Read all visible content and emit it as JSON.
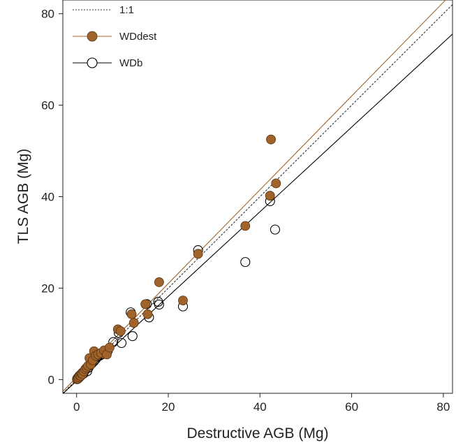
{
  "chart_data": {
    "type": "scatter",
    "title": "",
    "xlabel": "Destructive AGB (Mg)",
    "ylabel": "TLS AGB (Mg)",
    "xlim": [
      -3,
      82
    ],
    "ylim": [
      -3,
      83
    ],
    "x_ticks": [
      "0",
      "20",
      "40",
      "60",
      "80"
    ],
    "y_ticks": [
      "0",
      "20",
      "40",
      "60",
      "80"
    ],
    "grid": false,
    "legend_position": "top-left",
    "colors": {
      "wddest": "#a0642a",
      "wdb": "#000000",
      "one_to_one": "#333333"
    },
    "lines": [
      {
        "name": "1:1",
        "style": "dotted",
        "color": "#333333",
        "intercept": 0,
        "slope": 1
      },
      {
        "name": "WDdest",
        "style": "solid",
        "color": "#a0642a",
        "intercept": 0.5,
        "slope": 1.025
      },
      {
        "name": "WDb",
        "style": "solid",
        "color": "#000000",
        "intercept": -0.3,
        "slope": 0.925
      }
    ],
    "series": [
      {
        "name": "WDb",
        "marker": "open-circle",
        "points": [
          [
            0.1,
            0.1
          ],
          [
            0.2,
            0.3
          ],
          [
            0.3,
            0.2
          ],
          [
            0.4,
            0.5
          ],
          [
            0.5,
            0.4
          ],
          [
            0.6,
            0.8
          ],
          [
            0.8,
            0.7
          ],
          [
            1.0,
            1.2
          ],
          [
            1.1,
            1.0
          ],
          [
            1.3,
            1.5
          ],
          [
            1.5,
            1.3
          ],
          [
            1.8,
            2.0
          ],
          [
            2.0,
            2.3
          ],
          [
            2.3,
            1.8
          ],
          [
            2.6,
            2.6
          ],
          [
            3.0,
            3.2
          ],
          [
            3.3,
            3.5
          ],
          [
            3.8,
            4.0
          ],
          [
            4.2,
            4.5
          ],
          [
            4.6,
            5.0
          ],
          [
            5.0,
            5.2
          ],
          [
            5.5,
            5.5
          ],
          [
            6.0,
            6.2
          ],
          [
            6.8,
            6.3
          ],
          [
            8.0,
            8.2
          ],
          [
            9.2,
            10.2
          ],
          [
            9.8,
            8.0
          ],
          [
            11.8,
            14.7
          ],
          [
            12.2,
            9.5
          ],
          [
            15.3,
            16.5
          ],
          [
            15.8,
            13.6
          ],
          [
            17.8,
            17.0
          ],
          [
            18.0,
            16.4
          ],
          [
            23.2,
            16.0
          ],
          [
            26.5,
            28.3
          ],
          [
            36.8,
            25.7
          ],
          [
            42.2,
            39.0
          ],
          [
            43.3,
            32.8
          ]
        ]
      },
      {
        "name": "WDdest",
        "marker": "filled-circle",
        "points": [
          [
            0.1,
            0.1
          ],
          [
            0.2,
            0.3
          ],
          [
            0.3,
            0.2
          ],
          [
            0.5,
            0.5
          ],
          [
            0.7,
            0.9
          ],
          [
            0.9,
            0.8
          ],
          [
            1.1,
            1.3
          ],
          [
            1.3,
            1.2
          ],
          [
            1.6,
            1.8
          ],
          [
            1.9,
            2.3
          ],
          [
            2.2,
            2.6
          ],
          [
            2.5,
            3.0
          ],
          [
            2.8,
            4.7
          ],
          [
            3.1,
            3.3
          ],
          [
            3.5,
            4.2
          ],
          [
            3.8,
            6.2
          ],
          [
            4.2,
            5.2
          ],
          [
            4.7,
            5.5
          ],
          [
            5.3,
            5.8
          ],
          [
            6.0,
            6.4
          ],
          [
            6.6,
            5.5
          ],
          [
            7.2,
            7.0
          ],
          [
            9.0,
            11.0
          ],
          [
            9.6,
            10.6
          ],
          [
            12.0,
            14.3
          ],
          [
            12.5,
            12.4
          ],
          [
            15.0,
            16.5
          ],
          [
            15.5,
            14.3
          ],
          [
            18.0,
            21.3
          ],
          [
            23.2,
            17.3
          ],
          [
            26.5,
            27.5
          ],
          [
            36.8,
            33.6
          ],
          [
            42.2,
            40.2
          ],
          [
            42.4,
            52.5
          ],
          [
            43.5,
            42.9
          ]
        ]
      }
    ],
    "legend": [
      "1:1",
      "WDdest",
      "WDb"
    ]
  }
}
